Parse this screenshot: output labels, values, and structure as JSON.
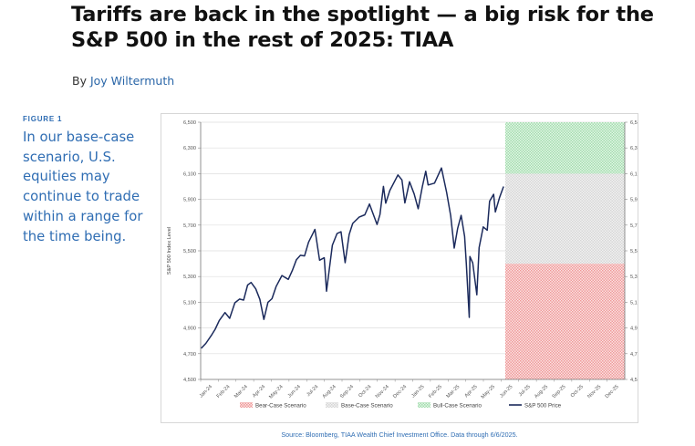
{
  "article": {
    "headline": "Tariffs are back in the spotlight — a big risk for the S&P 500 in the rest of 2025: TIAA",
    "byline_prefix": "By",
    "author": "Joy Wiltermuth"
  },
  "figure": {
    "label": "FIGURE 1",
    "caption": "In our base-case scenario, U.S. equities may continue to trade within a range for the time being.",
    "source": "Source: Bloomberg, TIAA Wealth Chief Investment Office. Data through 6/6/2025."
  },
  "colors": {
    "accent_blue": "#2f6db3",
    "line": "#1b2a5c",
    "bear": "#f2a3a3",
    "base": "#d9d9d9",
    "bull": "#a8dfb2"
  },
  "chart_data": {
    "type": "line",
    "title": "",
    "xlabel": "",
    "ylabel": "S&P 500 Index Level",
    "ylim": [
      4500,
      6500
    ],
    "yticks": [
      "4,500",
      "4,700",
      "4,900",
      "5,100",
      "5,300",
      "5,500",
      "5,700",
      "5,900",
      "6,100",
      "6,300",
      "6,500"
    ],
    "ytick_values": [
      4500,
      4700,
      4900,
      5100,
      5300,
      5500,
      5700,
      5900,
      6100,
      6300,
      6500
    ],
    "x_categories": [
      "Jan-24",
      "Feb-24",
      "Mar-24",
      "Apr-24",
      "May-24",
      "Jun-24",
      "Jul-24",
      "Aug-24",
      "Sep-24",
      "Oct-24",
      "Nov-24",
      "Dec-24",
      "Jan-25",
      "Feb-25",
      "Mar-25",
      "Apr-25",
      "May-25",
      "Jun-25",
      "Jul-25",
      "Aug-25",
      "Sep-25",
      "Oct-25",
      "Nov-25",
      "Dec-25"
    ],
    "grid": true,
    "legend_position": "bottom",
    "series": [
      {
        "name": "S&P 500 Price",
        "x": [
          "2024-01-02",
          "2024-01-10",
          "2024-01-19",
          "2024-01-26",
          "2024-02-02",
          "2024-02-12",
          "2024-02-20",
          "2024-02-29",
          "2024-03-08",
          "2024-03-15",
          "2024-03-22",
          "2024-03-28",
          "2024-04-05",
          "2024-04-12",
          "2024-04-19",
          "2024-04-26",
          "2024-05-03",
          "2024-05-10",
          "2024-05-20",
          "2024-05-31",
          "2024-06-07",
          "2024-06-14",
          "2024-06-21",
          "2024-06-28",
          "2024-07-05",
          "2024-07-16",
          "2024-07-24",
          "2024-08-01",
          "2024-08-05",
          "2024-08-15",
          "2024-08-23",
          "2024-08-30",
          "2024-09-06",
          "2024-09-13",
          "2024-09-19",
          "2024-09-30",
          "2024-10-10",
          "2024-10-18",
          "2024-10-31",
          "2024-11-05",
          "2024-11-11",
          "2024-11-15",
          "2024-11-22",
          "2024-12-06",
          "2024-12-13",
          "2024-12-18",
          "2024-12-26",
          "2025-01-03",
          "2025-01-10",
          "2025-01-17",
          "2025-01-23",
          "2025-01-27",
          "2025-02-07",
          "2025-02-19",
          "2025-02-28",
          "2025-03-07",
          "2025-03-13",
          "2025-03-19",
          "2025-03-25",
          "2025-03-31",
          "2025-04-03",
          "2025-04-08",
          "2025-04-09",
          "2025-04-14",
          "2025-04-21",
          "2025-04-25",
          "2025-05-02",
          "2025-05-09",
          "2025-05-13",
          "2025-05-20",
          "2025-05-23",
          "2025-05-30",
          "2025-06-06"
        ],
        "values": [
          4742,
          4780,
          4840,
          4890,
          4958,
          5020,
          4975,
          5096,
          5125,
          5117,
          5234,
          5254,
          5204,
          5123,
          4967,
          5100,
          5128,
          5222,
          5308,
          5278,
          5347,
          5431,
          5465,
          5460,
          5567,
          5667,
          5427,
          5446,
          5186,
          5543,
          5634,
          5648,
          5408,
          5626,
          5713,
          5762,
          5780,
          5864,
          5705,
          5782,
          6001,
          5870,
          5969,
          6090,
          6051,
          5872,
          6037,
          5942,
          5827,
          5997,
          6119,
          6012,
          6026,
          6144,
          5954,
          5770,
          5521,
          5675,
          5776,
          5612,
          5396,
          4982,
          5456,
          5406,
          5158,
          5525,
          5686,
          5660,
          5886,
          5940,
          5802,
          5912,
          6000
        ]
      }
    ],
    "scenarios": [
      {
        "name": "Bear-Case Scenario",
        "x_start": "2025-06-09",
        "x_end": "2025-12-31",
        "y_low": 4500,
        "y_high": 5400
      },
      {
        "name": "Base-Case Scenario",
        "x_start": "2025-06-09",
        "x_end": "2025-12-31",
        "y_low": 5400,
        "y_high": 6100
      },
      {
        "name": "Bull-Case Scenario",
        "x_start": "2025-06-09",
        "x_end": "2025-12-31",
        "y_low": 6100,
        "y_high": 6500
      }
    ],
    "legend": [
      "Bear-Case Scenario",
      "Base-Case Scenario",
      "Bull-Case Scenario",
      "S&P 500 Price"
    ]
  }
}
